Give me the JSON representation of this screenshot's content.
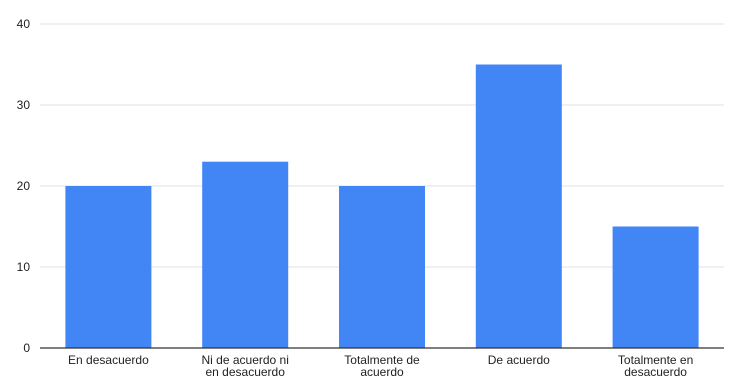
{
  "chart_data": {
    "type": "bar",
    "title": "",
    "xlabel": "",
    "ylabel": "",
    "ylim": [
      0,
      40
    ],
    "yticks": [
      0,
      10,
      20,
      30,
      40
    ],
    "grid": true,
    "legend": "none",
    "categories": [
      [
        "En desacuerdo"
      ],
      [
        "Ni de acuerdo ni",
        "en desacuerdo"
      ],
      [
        "Totalmente de",
        "acuerdo"
      ],
      [
        "De acuerdo"
      ],
      [
        "Totalmente en",
        "desacuerdo"
      ]
    ],
    "values": [
      20,
      23,
      20,
      35,
      15
    ],
    "colors": {
      "bar": "#4285f4",
      "grid": "#e0e0e0",
      "axis": "#333333"
    }
  }
}
